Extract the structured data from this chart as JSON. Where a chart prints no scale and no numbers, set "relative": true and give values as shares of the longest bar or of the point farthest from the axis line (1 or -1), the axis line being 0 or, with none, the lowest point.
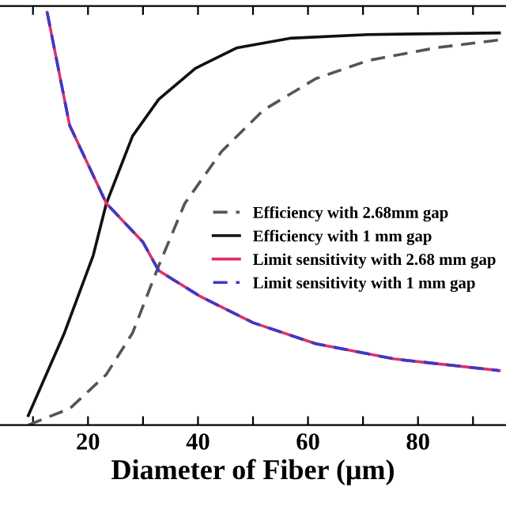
{
  "chart_data": {
    "type": "line",
    "relative": true,
    "xlabel": "Diameter of Fiber (μm)",
    "xlim": [
      4,
      96
    ],
    "xticks": [
      {
        "value": 10,
        "label": null
      },
      20,
      {
        "value": 30,
        "label": null
      },
      40,
      {
        "value": 50,
        "label": null
      },
      60,
      {
        "value": 70,
        "label": null
      },
      80,
      {
        "value": 90,
        "label": null
      }
    ],
    "legend": "right",
    "grid": false,
    "marker": "none",
    "series": [
      {
        "name": "Efficiency with 2.68mm gap",
        "color": "#555555",
        "line_style": "dashed",
        "x": [
          9.14,
          16.7,
          23.3,
          28.1,
          32.86,
          37.6,
          44.3,
          51.9,
          61.4,
          70.9,
          83.3,
          94.8
        ],
        "values": [
          0,
          0.04,
          0.122,
          0.223,
          0.386,
          0.537,
          0.663,
          0.763,
          0.839,
          0.883,
          0.914,
          0.933
        ]
      },
      {
        "name": "Efficiency with 1 mm gap",
        "color": "#111111",
        "line_style": "solid",
        "x": [
          9.14,
          15.71,
          20.95,
          23.34,
          28.1,
          32.86,
          39.5,
          47.1,
          56.7,
          70.9,
          94.8
        ],
        "values": [
          0.023,
          0.223,
          0.411,
          0.537,
          0.7,
          0.789,
          0.864,
          0.914,
          0.937,
          0.946,
          0.95
        ]
      },
      {
        "name": "Limit sensitivity with 2.68 mm gap",
        "color": "#e0306a",
        "line_style": "solid",
        "x": [
          12.57,
          16.66,
          23.34,
          30,
          32.86,
          40.49,
          50,
          61.43,
          75.71,
          94.77
        ],
        "values": [
          1.0,
          0.726,
          0.537,
          0.443,
          0.374,
          0.311,
          0.248,
          0.197,
          0.16,
          0.132
        ]
      },
      {
        "name": "Limit sensitivity with 1 mm gap",
        "color": "#3a3ac8",
        "line_style": "dashed",
        "x": [
          12.57,
          16.66,
          23.34,
          30,
          32.86,
          40.49,
          50,
          61.43,
          75.71,
          94.77
        ],
        "values": [
          1.0,
          0.726,
          0.537,
          0.443,
          0.374,
          0.311,
          0.248,
          0.197,
          0.16,
          0.132
        ]
      }
    ]
  }
}
